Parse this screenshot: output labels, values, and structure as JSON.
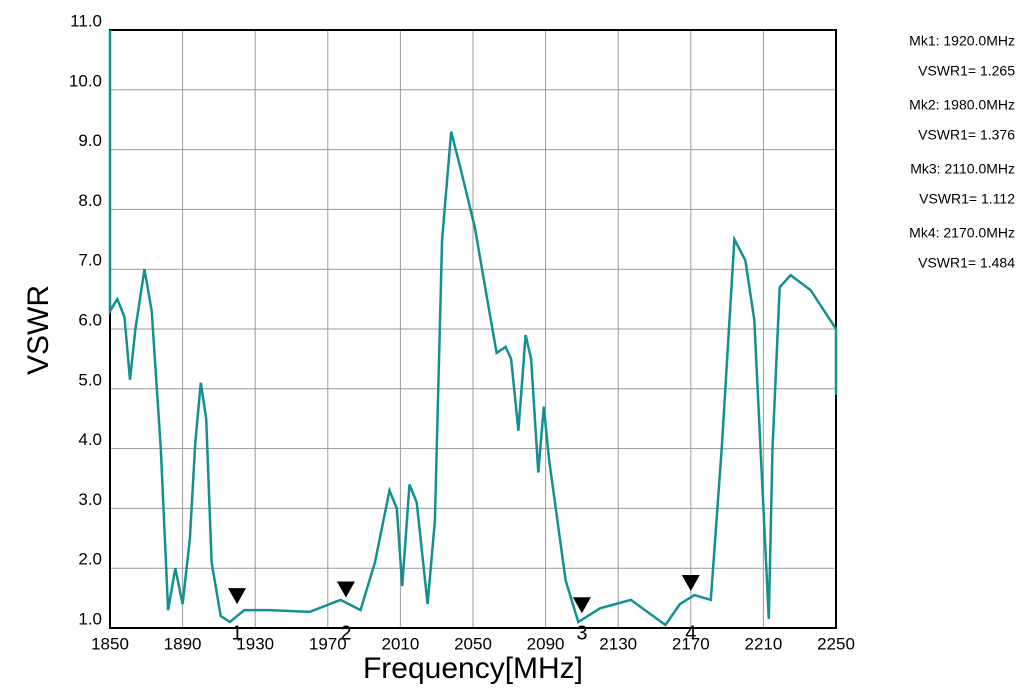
{
  "chart_data": {
    "type": "line",
    "x_label": "Frequency[MHz]",
    "y_label": "VSWR",
    "xlim": [
      1850,
      2250
    ],
    "xticks": [
      1850,
      1890,
      1930,
      1970,
      2010,
      2050,
      2090,
      2130,
      2170,
      2210,
      2250
    ],
    "ylim": [
      1,
      11
    ],
    "yticks": [
      {
        "value": 1,
        "label": "1.0"
      },
      {
        "value": 2,
        "label": "2.0"
      },
      {
        "value": 3,
        "label": "3.0"
      },
      {
        "value": 4,
        "label": "4.0"
      },
      {
        "value": 5,
        "label": "5.0"
      },
      {
        "value": 6,
        "label": "6.0"
      },
      {
        "value": 7,
        "label": "7.0"
      },
      {
        "value": 8,
        "label": "8.0"
      },
      {
        "value": 9,
        "label": "9.0"
      },
      {
        "value": 10,
        "label": "10.0"
      },
      {
        "value": 11,
        "label": "11.0"
      }
    ],
    "grid": true,
    "series": [
      {
        "name": "VSWR",
        "color": "#13908f",
        "x": [
          1850,
          1850,
          1854,
          1858,
          1861,
          1864,
          1869,
          1873,
          1878,
          1882,
          1886,
          1890,
          1894,
          1897,
          1900,
          1903,
          1906,
          1911,
          1916,
          1924,
          1938,
          1960,
          1977,
          1988,
          1996,
          2004,
          2008,
          2011,
          2015,
          2019,
          2025,
          2029,
          2033,
          2038,
          2043,
          2051,
          2059,
          2063,
          2068,
          2071,
          2075,
          2079,
          2082,
          2086,
          2089,
          2092,
          2101,
          2108,
          2120,
          2137,
          2156,
          2164,
          2172,
          2181,
          2187,
          2194,
          2200,
          2205,
          2213,
          2215,
          2219,
          2225,
          2236,
          2250,
          2250
        ],
        "values": [
          11,
          6.3,
          6.5,
          6.2,
          5.15,
          6.0,
          7.0,
          6.3,
          4.0,
          1.3,
          2.0,
          1.4,
          2.5,
          4.1,
          5.1,
          4.5,
          2.1,
          1.2,
          1.1,
          1.3,
          1.3,
          1.27,
          1.47,
          1.3,
          2.1,
          3.3,
          3.0,
          1.7,
          3.4,
          3.1,
          1.4,
          2.8,
          7.5,
          9.3,
          8.7,
          7.7,
          6.3,
          5.6,
          5.7,
          5.5,
          4.3,
          5.9,
          5.5,
          3.6,
          4.7,
          3.8,
          1.8,
          1.1,
          1.33,
          1.47,
          1.05,
          1.4,
          1.55,
          1.47,
          4.0,
          7.5,
          7.15,
          6.15,
          1.15,
          4.0,
          6.7,
          6.9,
          6.65,
          6.0,
          4.9
        ]
      }
    ],
    "markers": [
      {
        "label": "1",
        "x": 1920,
        "y": 1.265,
        "freq_text": "Mk1: 1920.0MHz",
        "vswr_text": "VSWR1= 1.265"
      },
      {
        "label": "2",
        "x": 1980,
        "y": 1.376,
        "freq_text": "Mk2: 1980.0MHz",
        "vswr_text": "VSWR1= 1.376"
      },
      {
        "label": "3",
        "x": 2110,
        "y": 1.112,
        "freq_text": "Mk3: 2110.0MHz",
        "vswr_text": "VSWR1= 1.112"
      },
      {
        "label": "4",
        "x": 2170,
        "y": 1.484,
        "freq_text": "Mk4: 2170.0MHz",
        "vswr_text": "VSWR1= 1.484"
      }
    ]
  }
}
